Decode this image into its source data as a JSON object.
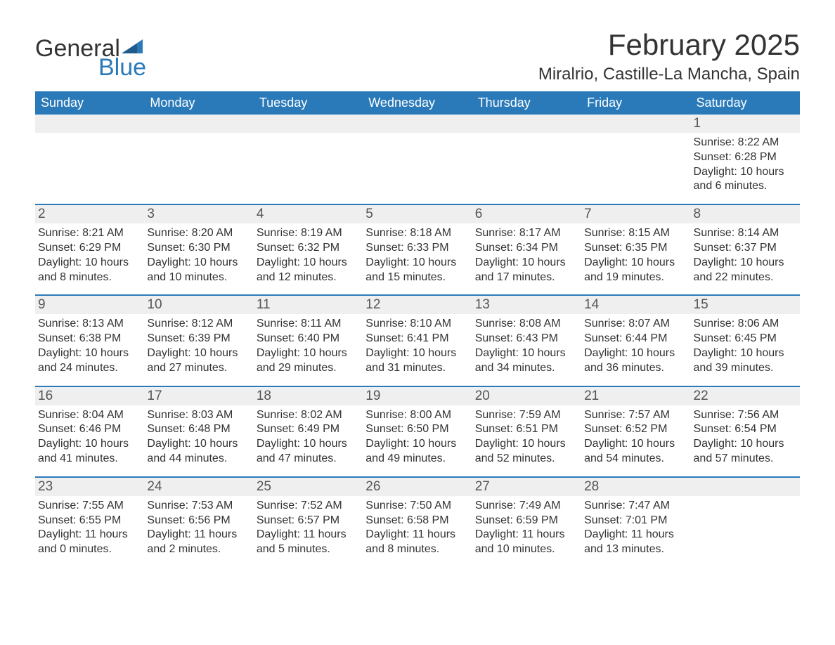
{
  "logo": {
    "text1": "General",
    "text2": "Blue",
    "brand_color": "#2a7ab9"
  },
  "header": {
    "title": "February 2025",
    "location": "Miralrio, Castille-La Mancha, Spain"
  },
  "calendar": {
    "header_bg": "#2a7ab9",
    "header_text_color": "#ffffff",
    "daynum_bg": "#efefef",
    "row_border_color": "#2a7ab9",
    "day_names": [
      "Sunday",
      "Monday",
      "Tuesday",
      "Wednesday",
      "Thursday",
      "Friday",
      "Saturday"
    ],
    "weeks": [
      {
        "nums": [
          "",
          "",
          "",
          "",
          "",
          "",
          "1"
        ],
        "cells": [
          [],
          [],
          [],
          [],
          [],
          [],
          [
            "Sunrise: 8:22 AM",
            "Sunset: 6:28 PM",
            "Daylight: 10 hours and 6 minutes."
          ]
        ]
      },
      {
        "nums": [
          "2",
          "3",
          "4",
          "5",
          "6",
          "7",
          "8"
        ],
        "cells": [
          [
            "Sunrise: 8:21 AM",
            "Sunset: 6:29 PM",
            "Daylight: 10 hours and 8 minutes."
          ],
          [
            "Sunrise: 8:20 AM",
            "Sunset: 6:30 PM",
            "Daylight: 10 hours and 10 minutes."
          ],
          [
            "Sunrise: 8:19 AM",
            "Sunset: 6:32 PM",
            "Daylight: 10 hours and 12 minutes."
          ],
          [
            "Sunrise: 8:18 AM",
            "Sunset: 6:33 PM",
            "Daylight: 10 hours and 15 minutes."
          ],
          [
            "Sunrise: 8:17 AM",
            "Sunset: 6:34 PM",
            "Daylight: 10 hours and 17 minutes."
          ],
          [
            "Sunrise: 8:15 AM",
            "Sunset: 6:35 PM",
            "Daylight: 10 hours and 19 minutes."
          ],
          [
            "Sunrise: 8:14 AM",
            "Sunset: 6:37 PM",
            "Daylight: 10 hours and 22 minutes."
          ]
        ]
      },
      {
        "nums": [
          "9",
          "10",
          "11",
          "12",
          "13",
          "14",
          "15"
        ],
        "cells": [
          [
            "Sunrise: 8:13 AM",
            "Sunset: 6:38 PM",
            "Daylight: 10 hours and 24 minutes."
          ],
          [
            "Sunrise: 8:12 AM",
            "Sunset: 6:39 PM",
            "Daylight: 10 hours and 27 minutes."
          ],
          [
            "Sunrise: 8:11 AM",
            "Sunset: 6:40 PM",
            "Daylight: 10 hours and 29 minutes."
          ],
          [
            "Sunrise: 8:10 AM",
            "Sunset: 6:41 PM",
            "Daylight: 10 hours and 31 minutes."
          ],
          [
            "Sunrise: 8:08 AM",
            "Sunset: 6:43 PM",
            "Daylight: 10 hours and 34 minutes."
          ],
          [
            "Sunrise: 8:07 AM",
            "Sunset: 6:44 PM",
            "Daylight: 10 hours and 36 minutes."
          ],
          [
            "Sunrise: 8:06 AM",
            "Sunset: 6:45 PM",
            "Daylight: 10 hours and 39 minutes."
          ]
        ]
      },
      {
        "nums": [
          "16",
          "17",
          "18",
          "19",
          "20",
          "21",
          "22"
        ],
        "cells": [
          [
            "Sunrise: 8:04 AM",
            "Sunset: 6:46 PM",
            "Daylight: 10 hours and 41 minutes."
          ],
          [
            "Sunrise: 8:03 AM",
            "Sunset: 6:48 PM",
            "Daylight: 10 hours and 44 minutes."
          ],
          [
            "Sunrise: 8:02 AM",
            "Sunset: 6:49 PM",
            "Daylight: 10 hours and 47 minutes."
          ],
          [
            "Sunrise: 8:00 AM",
            "Sunset: 6:50 PM",
            "Daylight: 10 hours and 49 minutes."
          ],
          [
            "Sunrise: 7:59 AM",
            "Sunset: 6:51 PM",
            "Daylight: 10 hours and 52 minutes."
          ],
          [
            "Sunrise: 7:57 AM",
            "Sunset: 6:52 PM",
            "Daylight: 10 hours and 54 minutes."
          ],
          [
            "Sunrise: 7:56 AM",
            "Sunset: 6:54 PM",
            "Daylight: 10 hours and 57 minutes."
          ]
        ]
      },
      {
        "nums": [
          "23",
          "24",
          "25",
          "26",
          "27",
          "28",
          ""
        ],
        "cells": [
          [
            "Sunrise: 7:55 AM",
            "Sunset: 6:55 PM",
            "Daylight: 11 hours and 0 minutes."
          ],
          [
            "Sunrise: 7:53 AM",
            "Sunset: 6:56 PM",
            "Daylight: 11 hours and 2 minutes."
          ],
          [
            "Sunrise: 7:52 AM",
            "Sunset: 6:57 PM",
            "Daylight: 11 hours and 5 minutes."
          ],
          [
            "Sunrise: 7:50 AM",
            "Sunset: 6:58 PM",
            "Daylight: 11 hours and 8 minutes."
          ],
          [
            "Sunrise: 7:49 AM",
            "Sunset: 6:59 PM",
            "Daylight: 11 hours and 10 minutes."
          ],
          [
            "Sunrise: 7:47 AM",
            "Sunset: 7:01 PM",
            "Daylight: 11 hours and 13 minutes."
          ],
          []
        ]
      }
    ]
  }
}
